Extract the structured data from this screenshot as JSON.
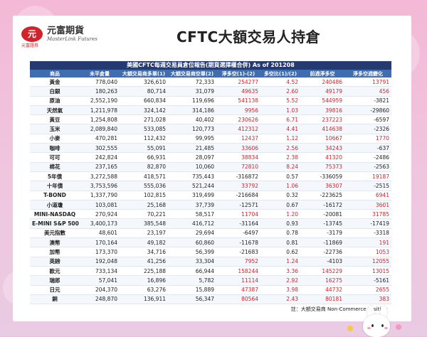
{
  "brand": {
    "mark": "元",
    "sub": "元富證券",
    "name_cn": "元富期貨",
    "name_en": "MasterLink Futures"
  },
  "title": "CFTC大額交易人持倉",
  "report": {
    "title": "美國CFTC每週交易員倉位報告(期貨選擇權合併) As of  201208",
    "headers": [
      "商品",
      "未平倉量",
      "大額交易商多單(1)",
      "大額交易商空單(2)",
      "淨多空(1)-(2)",
      "多空比(1)/(2)",
      "前週淨多空",
      "淨多空週變化"
    ],
    "rows": [
      [
        "黃金",
        "778,040",
        "326,610",
        "72,333",
        "254277",
        "4.52",
        "240486",
        "13791"
      ],
      [
        "白銀",
        "180,263",
        "80,714",
        "31,079",
        "49635",
        "2.60",
        "49179",
        "456"
      ],
      [
        "原油",
        "2,552,190",
        "660,834",
        "119,696",
        "541138",
        "5.52",
        "544959",
        "-3821"
      ],
      [
        "天然氣",
        "1,211,978",
        "324,142",
        "314,186",
        "9956",
        "1.03",
        "39816",
        "-29860"
      ],
      [
        "黃豆",
        "1,254,808",
        "271,028",
        "40,402",
        "230626",
        "6.71",
        "237223",
        "-6597"
      ],
      [
        "玉米",
        "2,089,840",
        "533,085",
        "120,773",
        "412312",
        "4.41",
        "414638",
        "-2326"
      ],
      [
        "小麥",
        "470,281",
        "112,432",
        "99,995",
        "12437",
        "1.12",
        "10667",
        "1770"
      ],
      [
        "咖啡",
        "302,555",
        "55,091",
        "21,485",
        "33606",
        "2.56",
        "34243",
        "-637"
      ],
      [
        "可可",
        "242,824",
        "66,931",
        "28,097",
        "38834",
        "2.38",
        "41320",
        "-2486"
      ],
      [
        "棉花",
        "237,165",
        "82,870",
        "10,060",
        "72810",
        "8.24",
        "75373",
        "-2563"
      ],
      [
        "5年債",
        "3,272,588",
        "418,571",
        "735,443",
        "-316872",
        "0.57",
        "-336059",
        "19187"
      ],
      [
        "十年債",
        "3,753,596",
        "555,036",
        "521,244",
        "33792",
        "1.06",
        "36307",
        "-2515"
      ],
      [
        "T-BOND",
        "1,337,790",
        "102,815",
        "319,499",
        "-216684",
        "0.32",
        "-223625",
        "6941"
      ],
      [
        "小道瓊",
        "103,081",
        "25,168",
        "37,739",
        "-12571",
        "0.67",
        "-16172",
        "3601"
      ],
      [
        "MINI-NASDAQ",
        "270,924",
        "70,221",
        "58,517",
        "11704",
        "1.20",
        "-20081",
        "31785"
      ],
      [
        "E-MINI S&P 500",
        "3,400,173",
        "385,548",
        "416,712",
        "-31164",
        "0.93",
        "-13745",
        "-17419"
      ],
      [
        "美元指數",
        "48,601",
        "23,197",
        "29,694",
        "-6497",
        "0.78",
        "-3179",
        "-3318"
      ],
      [
        "澳幣",
        "170,164",
        "49,182",
        "60,860",
        "-11678",
        "0.81",
        "-11869",
        "191"
      ],
      [
        "加幣",
        "173,370",
        "34,716",
        "56,399",
        "-21683",
        "0.62",
        "-22736",
        "1053"
      ],
      [
        "英鎊",
        "192,048",
        "41,256",
        "33,304",
        "7952",
        "1.24",
        "-4103",
        "12055"
      ],
      [
        "歐元",
        "733,134",
        "225,188",
        "66,944",
        "158244",
        "3.36",
        "145229",
        "13015"
      ],
      [
        "瑞郎",
        "57,041",
        "16,896",
        "5,782",
        "11114",
        "2.92",
        "16275",
        "-5161"
      ],
      [
        "日元",
        "204,370",
        "63,276",
        "15,889",
        "47387",
        "3.98",
        "44732",
        "2655"
      ],
      [
        "銅",
        "248,870",
        "136,911",
        "56,347",
        "80564",
        "2.43",
        "80181",
        "383"
      ]
    ],
    "note": "註：大額交易商 Non-Commerce Position"
  },
  "colors": {
    "positive": "#d2232a",
    "negative": "#222222",
    "header_dark": "#243a70",
    "header": "#3f6db0"
  }
}
